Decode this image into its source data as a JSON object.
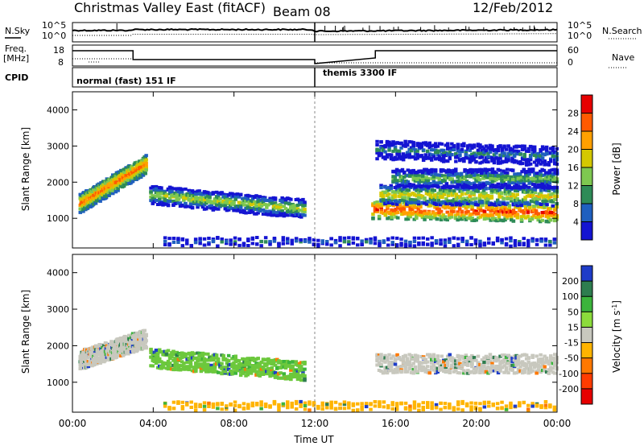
{
  "header": {
    "title": "Christmas Valley East (fitACF)",
    "beam": "Beam 08",
    "date": "12/Feb/2012"
  },
  "params": {
    "left_labels": [
      "N.Sky",
      "Freq.",
      "[MHz]",
      "CPID"
    ],
    "right_labels": [
      "N.Search",
      "Nave"
    ],
    "nsky_ticks": [
      "10^5",
      "10^0"
    ],
    "freq_ticks": [
      "18",
      "8"
    ],
    "search_ticks": [
      "10^5",
      "10^0"
    ],
    "nave_ticks": [
      "60",
      "0"
    ],
    "cpid_segments": [
      {
        "label": "normal (fast) 151 IF",
        "start_h": 0,
        "end_h": 12
      },
      {
        "label": "themis 3300 IF",
        "start_h": 12,
        "end_h": 24
      }
    ]
  },
  "chart_data": [
    {
      "type": "heatmap",
      "panel": "power",
      "ylabel": "Slant Range [km]",
      "yticks": [
        1000,
        2000,
        3000,
        4000
      ],
      "ylim": [
        180,
        4500
      ],
      "xlim": [
        0,
        24
      ],
      "colorbar": {
        "label": "Power [dB]",
        "ticks": [
          "28",
          "24",
          "20",
          "16",
          "12",
          "8",
          "4"
        ],
        "colors": [
          "#e60000",
          "#ff5a00",
          "#ffa000",
          "#d4c800",
          "#7ec850",
          "#2e8b57",
          "#1f5fbf",
          "#1414d2"
        ]
      },
      "features": [
        {
          "name": "early-band",
          "t0": 0.3,
          "t1": 3.6,
          "r0": 1400,
          "r1": 2500,
          "level": 0.85
        },
        {
          "name": "mid-band",
          "t0": 3.8,
          "t1": 11.5,
          "r0": 1650,
          "r1": 1250,
          "level": 0.55
        },
        {
          "name": "late-band-strong",
          "t0": 14.8,
          "t1": 24,
          "r0": 1250,
          "r1": 1150,
          "level": 0.95
        },
        {
          "name": "late-band-mid",
          "t0": 15.2,
          "t1": 24,
          "r0": 1650,
          "r1": 1600,
          "level": 0.65
        },
        {
          "name": "late-band-upper",
          "t0": 15.8,
          "t1": 24,
          "r0": 2100,
          "r1": 2100,
          "level": 0.45
        },
        {
          "name": "late-band-top",
          "t0": 15.0,
          "t1": 24,
          "r0": 2900,
          "r1": 2700,
          "level": 0.3
        },
        {
          "name": "ground-scatter",
          "t0": 4.5,
          "t1": 24,
          "r0": 350,
          "r1": 350,
          "level": 0.25
        }
      ]
    },
    {
      "type": "heatmap",
      "panel": "velocity",
      "ylabel": "Slant Range [km]",
      "yticks": [
        1000,
        2000,
        3000,
        4000
      ],
      "ylim": [
        180,
        4500
      ],
      "xlim": [
        0,
        24
      ],
      "xticks": [
        "00:00",
        "04:00",
        "08:00",
        "12:00",
        "16:00",
        "20:00",
        "00:00"
      ],
      "xlabel": "Time UT",
      "colorbar": {
        "label": "Velocity [m s-1]",
        "ticks": [
          "200",
          "100",
          "50",
          "15",
          "-15",
          "-50",
          "-100",
          "-200"
        ],
        "colors": [
          "#1e3cc8",
          "#2e7d4f",
          "#3cb43c",
          "#8cdc3c",
          "#c8c8be",
          "#ffb400",
          "#ff7800",
          "#ff3c00",
          "#e60000"
        ]
      },
      "features": [
        {
          "name": "early-gray",
          "t0": 0.3,
          "t1": 3.6,
          "r0": 1600,
          "r1": 2200,
          "value": "gray"
        },
        {
          "name": "mid-green",
          "t0": 3.8,
          "t1": 11.5,
          "r0": 1650,
          "r1": 1300,
          "value": "green"
        },
        {
          "name": "late-gray",
          "t0": 15.0,
          "t1": 24,
          "r0": 1500,
          "r1": 1500,
          "value": "gray"
        },
        {
          "name": "ground-orange",
          "t0": 4.5,
          "t1": 24,
          "r0": 350,
          "r1": 350,
          "value": "orange"
        }
      ]
    }
  ]
}
